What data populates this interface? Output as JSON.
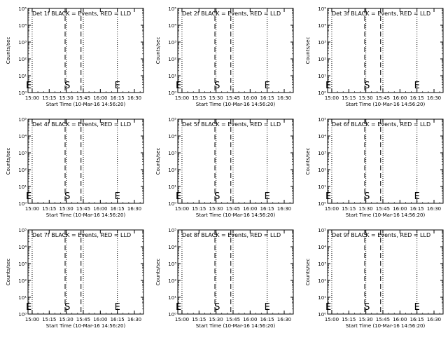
{
  "chart_data": [
    {
      "type": "line",
      "title": "Det 1f BLACK = Events, RED = LLD",
      "ylabel": "Counts/sec",
      "xlabel": "Start Time (10-Mar-16 14:56:20)",
      "x_ticks": [
        "15:00",
        "15:15",
        "15:30",
        "15:45",
        "16:00",
        "16:15",
        "16:30"
      ],
      "y_ticks": [
        "10^0",
        "10^1",
        "10^2",
        "10^3",
        "10^4",
        "10^5"
      ],
      "y_scale": "log",
      "ylim": [
        1,
        100000
      ],
      "xlim": [
        "14:56:20",
        "16:38:00"
      ],
      "dotted_lines": [
        "15:00",
        "15:30",
        "15:45",
        "16:15"
      ],
      "dashed_lines": [
        "15:29",
        "15:43"
      ],
      "markers": [
        {
          "label": "E",
          "x": "14:57"
        },
        {
          "label": "S",
          "x": "15:31"
        },
        {
          "label": "E",
          "x": "16:15"
        }
      ],
      "series": []
    },
    {
      "type": "line",
      "title": "Det 2f BLACK = Events, RED = LLD",
      "ylabel": "Counts/sec",
      "xlabel": "Start Time (10-Mar-16 14:56:20)",
      "x_ticks": [
        "15:00",
        "15:15",
        "15:30",
        "15:45",
        "16:00",
        "16:15",
        "16:30"
      ],
      "y_ticks": [
        "10^0",
        "10^1",
        "10^2",
        "10^3",
        "10^4",
        "10^5"
      ],
      "y_scale": "log",
      "ylim": [
        1,
        100000
      ],
      "xlim": [
        "14:56:20",
        "16:38:00"
      ],
      "dotted_lines": [
        "15:00",
        "15:30",
        "15:45",
        "16:15"
      ],
      "dashed_lines": [
        "15:29",
        "15:43"
      ],
      "markers": [
        {
          "label": "E",
          "x": "14:57"
        },
        {
          "label": "S",
          "x": "15:31"
        },
        {
          "label": "E",
          "x": "16:15"
        }
      ],
      "series": []
    },
    {
      "type": "line",
      "title": "Det 3f BLACK = Events, RED = LLD",
      "ylabel": "Counts/sec",
      "xlabel": "Start Time (10-Mar-16 14:56:20)",
      "x_ticks": [
        "15:00",
        "15:15",
        "15:30",
        "15:45",
        "16:00",
        "16:15",
        "16:30"
      ],
      "y_ticks": [
        "10^0",
        "10^1",
        "10^2",
        "10^3",
        "10^4",
        "10^5"
      ],
      "y_scale": "log",
      "ylim": [
        1,
        100000
      ],
      "xlim": [
        "14:56:20",
        "16:38:00"
      ],
      "dotted_lines": [
        "15:00",
        "15:30",
        "15:45",
        "16:15"
      ],
      "dashed_lines": [
        "15:29",
        "15:43"
      ],
      "markers": [
        {
          "label": "E",
          "x": "14:57"
        },
        {
          "label": "S",
          "x": "15:31"
        },
        {
          "label": "E",
          "x": "16:15"
        }
      ],
      "series": []
    },
    {
      "type": "line",
      "title": "Det 4f BLACK = Events, RED = LLD",
      "ylabel": "Counts/sec",
      "xlabel": "Start Time (10-Mar-16 14:56:20)",
      "x_ticks": [
        "15:00",
        "15:15",
        "15:30",
        "15:45",
        "16:00",
        "16:15",
        "16:30"
      ],
      "y_ticks": [
        "10^0",
        "10^1",
        "10^2",
        "10^3",
        "10^4",
        "10^5"
      ],
      "y_scale": "log",
      "ylim": [
        1,
        100000
      ],
      "xlim": [
        "14:56:20",
        "16:38:00"
      ],
      "dotted_lines": [
        "15:00",
        "15:30",
        "15:45",
        "16:15"
      ],
      "dashed_lines": [
        "15:29",
        "15:43"
      ],
      "markers": [
        {
          "label": "E",
          "x": "14:57"
        },
        {
          "label": "S",
          "x": "15:31"
        },
        {
          "label": "E",
          "x": "16:15"
        }
      ],
      "series": []
    },
    {
      "type": "line",
      "title": "Det 5f BLACK = Events, RED = LLD",
      "ylabel": "Counts/sec",
      "xlabel": "Start Time (10-Mar-16 14:56:20)",
      "x_ticks": [
        "15:00",
        "15:15",
        "15:30",
        "15:45",
        "16:00",
        "16:15",
        "16:30"
      ],
      "y_ticks": [
        "10^0",
        "10^1",
        "10^2",
        "10^3",
        "10^4",
        "10^5"
      ],
      "y_scale": "log",
      "ylim": [
        1,
        100000
      ],
      "xlim": [
        "14:56:20",
        "16:38:00"
      ],
      "dotted_lines": [
        "15:00",
        "15:30",
        "15:45",
        "16:15"
      ],
      "dashed_lines": [
        "15:29",
        "15:43"
      ],
      "markers": [
        {
          "label": "E",
          "x": "14:57"
        },
        {
          "label": "S",
          "x": "15:31"
        },
        {
          "label": "E",
          "x": "16:15"
        }
      ],
      "series": []
    },
    {
      "type": "line",
      "title": "Det 6f BLACK = Events, RED = LLD",
      "ylabel": "Counts/sec",
      "xlabel": "Start Time (10-Mar-16 14:56:20)",
      "x_ticks": [
        "15:00",
        "15:15",
        "15:30",
        "15:45",
        "16:00",
        "16:15",
        "16:30"
      ],
      "y_ticks": [
        "10^0",
        "10^1",
        "10^2",
        "10^3",
        "10^4",
        "10^5"
      ],
      "y_scale": "log",
      "ylim": [
        1,
        100000
      ],
      "xlim": [
        "14:56:20",
        "16:38:00"
      ],
      "dotted_lines": [
        "15:00",
        "15:30",
        "15:45",
        "16:15"
      ],
      "dashed_lines": [
        "15:29",
        "15:43"
      ],
      "markers": [
        {
          "label": "E",
          "x": "14:57"
        },
        {
          "label": "S",
          "x": "15:31"
        },
        {
          "label": "E",
          "x": "16:15"
        }
      ],
      "series": []
    },
    {
      "type": "line",
      "title": "Det 7f BLACK = Events, RED = LLD",
      "ylabel": "Counts/sec",
      "xlabel": "Start Time (10-Mar-16 14:56:20)",
      "x_ticks": [
        "15:00",
        "15:15",
        "15:30",
        "15:45",
        "16:00",
        "16:15",
        "16:30"
      ],
      "y_ticks": [
        "10^0",
        "10^1",
        "10^2",
        "10^3",
        "10^4",
        "10^5"
      ],
      "y_scale": "log",
      "ylim": [
        1,
        100000
      ],
      "xlim": [
        "14:56:20",
        "16:38:00"
      ],
      "dotted_lines": [
        "15:00",
        "15:30",
        "15:45",
        "16:15"
      ],
      "dashed_lines": [
        "15:29",
        "15:43"
      ],
      "markers": [
        {
          "label": "E",
          "x": "14:57"
        },
        {
          "label": "S",
          "x": "15:31"
        },
        {
          "label": "E",
          "x": "16:15"
        }
      ],
      "series": []
    },
    {
      "type": "line",
      "title": "Det 8f BLACK = Events, RED = LLD",
      "ylabel": "Counts/sec",
      "xlabel": "Start Time (10-Mar-16 14:56:20)",
      "x_ticks": [
        "15:00",
        "15:15",
        "15:30",
        "15:45",
        "16:00",
        "16:15",
        "16:30"
      ],
      "y_ticks": [
        "10^0",
        "10^1",
        "10^2",
        "10^3",
        "10^4",
        "10^5"
      ],
      "y_scale": "log",
      "ylim": [
        1,
        100000
      ],
      "xlim": [
        "14:56:20",
        "16:38:00"
      ],
      "dotted_lines": [
        "15:00",
        "15:30",
        "15:45",
        "16:15"
      ],
      "dashed_lines": [
        "15:29",
        "15:43"
      ],
      "markers": [
        {
          "label": "E",
          "x": "14:57"
        },
        {
          "label": "S",
          "x": "15:31"
        },
        {
          "label": "E",
          "x": "16:15"
        }
      ],
      "series": []
    },
    {
      "type": "line",
      "title": "Det 9f BLACK = Events, RED = LLD",
      "ylabel": "Counts/sec",
      "xlabel": "Start Time (10-Mar-16 14:56:20)",
      "x_ticks": [
        "15:00",
        "15:15",
        "15:30",
        "15:45",
        "16:00",
        "16:15",
        "16:30"
      ],
      "y_ticks": [
        "10^0",
        "10^1",
        "10^2",
        "10^3",
        "10^4",
        "10^5"
      ],
      "y_scale": "log",
      "ylim": [
        1,
        100000
      ],
      "xlim": [
        "14:56:20",
        "16:38:00"
      ],
      "dotted_lines": [
        "15:00",
        "15:30",
        "15:45",
        "16:15"
      ],
      "dashed_lines": [
        "15:29",
        "15:43"
      ],
      "markers": [
        {
          "label": "E",
          "x": "14:57"
        },
        {
          "label": "S",
          "x": "15:31"
        },
        {
          "label": "E",
          "x": "16:15"
        }
      ],
      "series": []
    }
  ]
}
